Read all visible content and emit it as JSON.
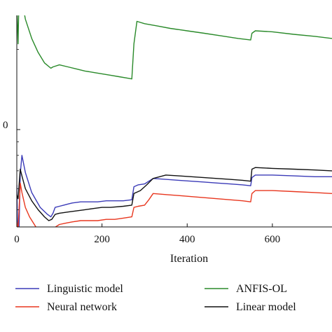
{
  "chart_data": {
    "type": "line",
    "title": "",
    "xlabel": "Iteration",
    "ylabel": "",
    "xlim": [
      0,
      740
    ],
    "y_scale": "log",
    "x_ticks": [
      {
        "value": 0,
        "label": "0"
      },
      {
        "value": 200,
        "label": "200"
      },
      {
        "value": 400,
        "label": "400"
      },
      {
        "value": 600,
        "label": "600"
      }
    ],
    "y_ticks": [
      {
        "value": 1,
        "label": "0"
      }
    ],
    "grid": false,
    "legend": "bottom",
    "series": [
      {
        "name": "Linguistic model",
        "color": "#3b3bb8",
        "points": [
          [
            0,
            0.62
          ],
          [
            2,
            0.41
          ],
          [
            5,
            0.4
          ],
          [
            8,
            0.68
          ],
          [
            12,
            0.8
          ],
          [
            20,
            0.69
          ],
          [
            35,
            0.58
          ],
          [
            55,
            0.51
          ],
          [
            72,
            0.48
          ],
          [
            80,
            0.47
          ],
          [
            85,
            0.485
          ],
          [
            90,
            0.51
          ],
          [
            100,
            0.515
          ],
          [
            110,
            0.52
          ],
          [
            120,
            0.525
          ],
          [
            130,
            0.53
          ],
          [
            150,
            0.535
          ],
          [
            170,
            0.535
          ],
          [
            190,
            0.535
          ],
          [
            210,
            0.54
          ],
          [
            230,
            0.54
          ],
          [
            250,
            0.54
          ],
          [
            270,
            0.545
          ],
          [
            275,
            0.61
          ],
          [
            285,
            0.62
          ],
          [
            300,
            0.625
          ],
          [
            310,
            0.64
          ],
          [
            320,
            0.655
          ],
          [
            350,
            0.65
          ],
          [
            380,
            0.645
          ],
          [
            410,
            0.64
          ],
          [
            440,
            0.635
          ],
          [
            470,
            0.63
          ],
          [
            500,
            0.625
          ],
          [
            530,
            0.62
          ],
          [
            549,
            0.615
          ],
          [
            552,
            0.66
          ],
          [
            560,
            0.675
          ],
          [
            600,
            0.675
          ],
          [
            650,
            0.67
          ],
          [
            700,
            0.665
          ],
          [
            740,
            0.665
          ]
        ]
      },
      {
        "name": "Neural network",
        "color": "#e8361e",
        "points": [
          [
            0,
            0.45
          ],
          [
            3,
            0.42
          ],
          [
            8,
            0.63
          ],
          [
            12,
            0.58
          ],
          [
            20,
            0.51
          ],
          [
            30,
            0.47
          ],
          [
            45,
            0.43
          ],
          [
            60,
            0.415
          ],
          [
            75,
            0.405
          ],
          [
            85,
            0.41
          ],
          [
            90,
            0.43
          ],
          [
            100,
            0.44
          ],
          [
            115,
            0.445
          ],
          [
            130,
            0.45
          ],
          [
            150,
            0.455
          ],
          [
            170,
            0.455
          ],
          [
            190,
            0.455
          ],
          [
            210,
            0.46
          ],
          [
            230,
            0.46
          ],
          [
            250,
            0.465
          ],
          [
            270,
            0.47
          ],
          [
            275,
            0.51
          ],
          [
            285,
            0.515
          ],
          [
            300,
            0.52
          ],
          [
            310,
            0.545
          ],
          [
            320,
            0.575
          ],
          [
            350,
            0.57
          ],
          [
            380,
            0.565
          ],
          [
            410,
            0.56
          ],
          [
            440,
            0.555
          ],
          [
            470,
            0.55
          ],
          [
            500,
            0.545
          ],
          [
            530,
            0.54
          ],
          [
            549,
            0.535
          ],
          [
            552,
            0.575
          ],
          [
            560,
            0.59
          ],
          [
            600,
            0.59
          ],
          [
            650,
            0.585
          ],
          [
            700,
            0.58
          ],
          [
            740,
            0.575
          ]
        ]
      },
      {
        "name": "ANFIS-OL",
        "color": "#2a8a2a",
        "points": [
          [
            0,
            2.9
          ],
          [
            3,
            2.1
          ],
          [
            6,
            3.7
          ],
          [
            10,
            3.2
          ],
          [
            20,
            2.6
          ],
          [
            35,
            2.2
          ],
          [
            50,
            1.95
          ],
          [
            65,
            1.78
          ],
          [
            80,
            1.7
          ],
          [
            85,
            1.72
          ],
          [
            100,
            1.75
          ],
          [
            120,
            1.72
          ],
          [
            140,
            1.69
          ],
          [
            160,
            1.66
          ],
          [
            180,
            1.64
          ],
          [
            200,
            1.62
          ],
          [
            220,
            1.6
          ],
          [
            240,
            1.58
          ],
          [
            260,
            1.56
          ],
          [
            270,
            1.55
          ],
          [
            275,
            2.1
          ],
          [
            282,
            2.55
          ],
          [
            300,
            2.5
          ],
          [
            330,
            2.45
          ],
          [
            360,
            2.4
          ],
          [
            400,
            2.35
          ],
          [
            440,
            2.3
          ],
          [
            480,
            2.25
          ],
          [
            520,
            2.2
          ],
          [
            549,
            2.17
          ],
          [
            552,
            2.3
          ],
          [
            560,
            2.35
          ],
          [
            600,
            2.33
          ],
          [
            650,
            2.28
          ],
          [
            700,
            2.24
          ],
          [
            740,
            2.2
          ]
        ]
      },
      {
        "name": "Linear model",
        "color": "#111111",
        "points": [
          [
            0,
            0.57
          ],
          [
            3,
            0.55
          ],
          [
            8,
            0.71
          ],
          [
            12,
            0.67
          ],
          [
            20,
            0.6
          ],
          [
            35,
            0.54
          ],
          [
            50,
            0.5
          ],
          [
            65,
            0.47
          ],
          [
            75,
            0.455
          ],
          [
            82,
            0.46
          ],
          [
            90,
            0.48
          ],
          [
            100,
            0.485
          ],
          [
            120,
            0.49
          ],
          [
            140,
            0.495
          ],
          [
            160,
            0.5
          ],
          [
            180,
            0.505
          ],
          [
            200,
            0.51
          ],
          [
            220,
            0.51
          ],
          [
            250,
            0.515
          ],
          [
            270,
            0.52
          ],
          [
            275,
            0.575
          ],
          [
            290,
            0.59
          ],
          [
            305,
            0.62
          ],
          [
            320,
            0.655
          ],
          [
            350,
            0.675
          ],
          [
            380,
            0.67
          ],
          [
            410,
            0.665
          ],
          [
            440,
            0.66
          ],
          [
            470,
            0.655
          ],
          [
            500,
            0.65
          ],
          [
            530,
            0.645
          ],
          [
            549,
            0.64
          ],
          [
            552,
            0.71
          ],
          [
            560,
            0.72
          ],
          [
            600,
            0.715
          ],
          [
            650,
            0.71
          ],
          [
            700,
            0.705
          ],
          [
            740,
            0.7
          ]
        ]
      }
    ]
  }
}
